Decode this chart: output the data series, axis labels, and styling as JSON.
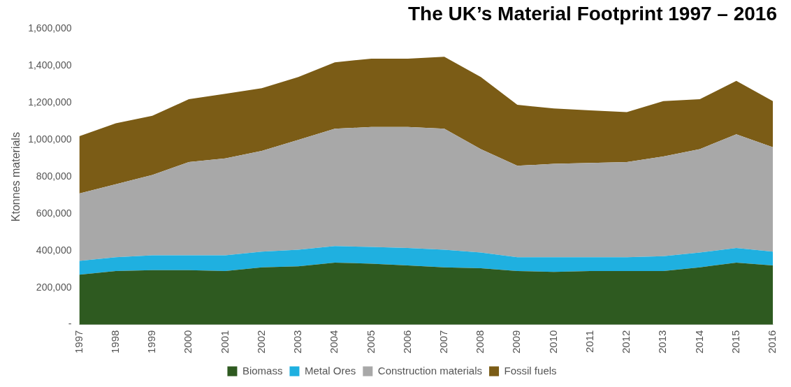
{
  "chart_data": {
    "type": "area",
    "title": "The UK’s Material Footprint 1997 – 2016",
    "ylabel": "Ktonnes materials",
    "categories": [
      "1997",
      "1998",
      "1999",
      "2000",
      "2001",
      "2002",
      "2003",
      "2004",
      "2005",
      "2006",
      "2007",
      "2008",
      "2009",
      "2010",
      "2011",
      "2012",
      "2013",
      "2014",
      "2015",
      "2016"
    ],
    "stacked": true,
    "series": [
      {
        "name": "Biomass",
        "color": "#2e5a20",
        "values": [
          270000,
          290000,
          295000,
          295000,
          290000,
          310000,
          315000,
          335000,
          330000,
          320000,
          310000,
          305000,
          290000,
          285000,
          290000,
          290000,
          290000,
          310000,
          335000,
          320000
        ]
      },
      {
        "name": "Metal Ores",
        "color": "#1fb0e0",
        "values": [
          75000,
          75000,
          80000,
          80000,
          85000,
          85000,
          90000,
          90000,
          90000,
          95000,
          95000,
          85000,
          75000,
          80000,
          75000,
          75000,
          80000,
          80000,
          80000,
          75000
        ]
      },
      {
        "name": "Construction materials",
        "color": "#a8a8a8",
        "values": [
          365000,
          395000,
          435000,
          505000,
          525000,
          545000,
          595000,
          635000,
          650000,
          655000,
          655000,
          560000,
          495000,
          505000,
          510000,
          515000,
          540000,
          560000,
          615000,
          565000
        ]
      },
      {
        "name": "Fossil fuels",
        "color": "#7b5c16",
        "values": [
          310000,
          330000,
          320000,
          340000,
          350000,
          340000,
          340000,
          360000,
          370000,
          370000,
          390000,
          390000,
          330000,
          300000,
          285000,
          270000,
          300000,
          270000,
          290000,
          250000
        ]
      }
    ],
    "ylim": [
      0,
      1600000
    ],
    "yticks": [
      {
        "value": 0,
        "label": "-"
      },
      {
        "value": 200000,
        "label": "200,000"
      },
      {
        "value": 400000,
        "label": "400,000"
      },
      {
        "value": 600000,
        "label": "600,000"
      },
      {
        "value": 800000,
        "label": "800,000"
      },
      {
        "value": 1000000,
        "label": "1,000,000"
      },
      {
        "value": 1200000,
        "label": "1,200,000"
      },
      {
        "value": 1400000,
        "label": "1,400,000"
      },
      {
        "value": 1600000,
        "label": "1,600,000"
      }
    ],
    "grid": false,
    "legend": "bottom"
  }
}
